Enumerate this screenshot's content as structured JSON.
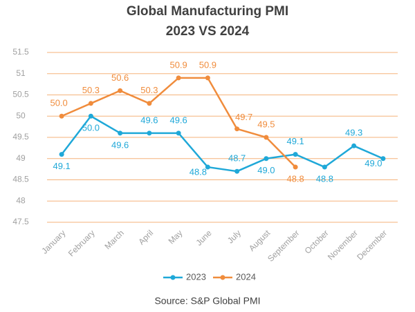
{
  "chart_data": {
    "type": "line",
    "title": "Global Manufacturing PMI",
    "subtitle": "2023 VS 2024",
    "source": "Source: S&P Global PMI",
    "categories": [
      "January",
      "February",
      "March",
      "April",
      "May",
      "June",
      "July",
      "August",
      "September",
      "October",
      "November",
      "December"
    ],
    "series": [
      {
        "name": "2023",
        "color": "#1fa8d8",
        "values": [
          49.1,
          50.0,
          49.6,
          49.6,
          49.6,
          48.8,
          48.7,
          49.0,
          49.1,
          48.8,
          49.3,
          49.0
        ],
        "value_labels": [
          "49.1",
          "50.0",
          "49.6",
          "49.6",
          "49.6",
          "48.8",
          "48.7",
          "49.0",
          "49.1",
          "48.8",
          "49.3",
          "49.0"
        ]
      },
      {
        "name": "2024",
        "color": "#f08c3c",
        "values": [
          50.0,
          50.3,
          50.6,
          50.3,
          50.9,
          50.9,
          49.7,
          49.5,
          48.8,
          null,
          null,
          null
        ],
        "value_labels": [
          "50.0",
          "50.3",
          "50.6",
          "50.3",
          "50.9",
          "50.9",
          "49.7",
          "49.5",
          "48.8",
          null,
          null,
          null
        ]
      }
    ],
    "ylim": [
      47.5,
      51.5
    ],
    "yticks": [
      47.5,
      48,
      48.5,
      49,
      49.5,
      50,
      50.5,
      51,
      51.5
    ],
    "grid": true,
    "grid_color": "#f5b27a",
    "legend": "bottom"
  }
}
